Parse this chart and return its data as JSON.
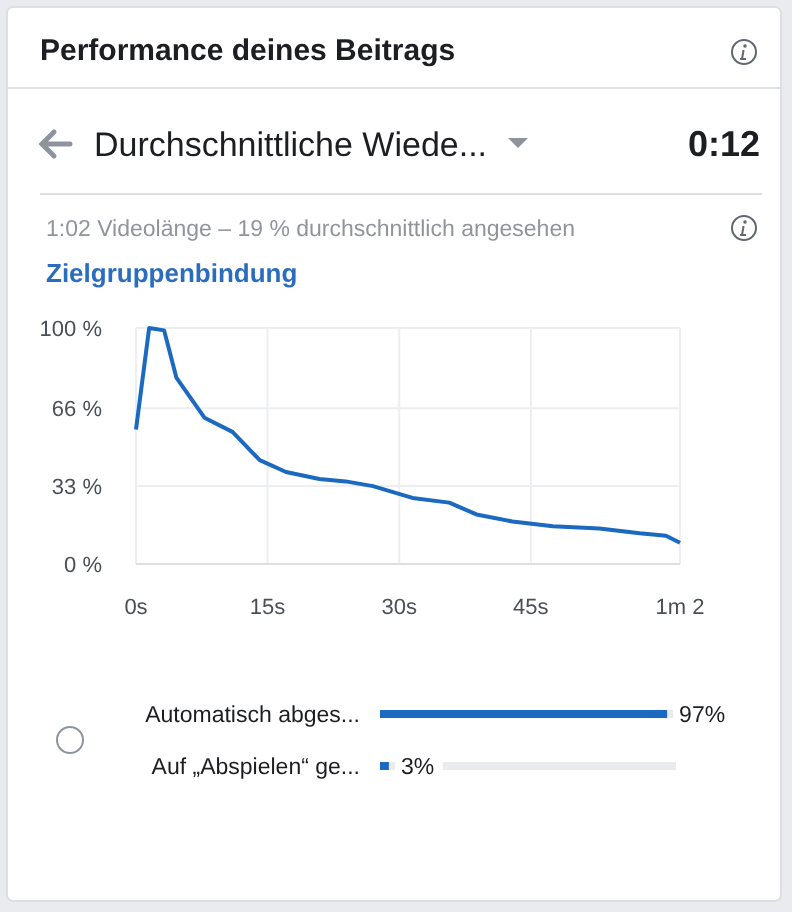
{
  "chart_data": [
    {
      "type": "line",
      "title": "Zielgruppenbindung",
      "subtitle": "1:02 Videolänge – 19 % durchschnittlich angesehen",
      "annotations": [
        "Performance deines Beitrags",
        "Durchschnittliche Wiede...",
        "0:12"
      ],
      "x": [
        0,
        1.5,
        3.2,
        4.6,
        6.1,
        7.8,
        11,
        14.1,
        17.1,
        20.9,
        23.9,
        27,
        31.5,
        35.7,
        38.8,
        42.9,
        47.5,
        52.8,
        57.4,
        60.4,
        62
      ],
      "series": [
        {
          "color": "#1b6ac0",
          "values": [
            57,
            100,
            99,
            79,
            71,
            62,
            56,
            44,
            39,
            36,
            35,
            33,
            28,
            26,
            21,
            18,
            16,
            15,
            13,
            12,
            9
          ]
        }
      ],
      "xlim": [
        0,
        62
      ],
      "xticks": [
        {
          "value": 0,
          "label": "0s"
        },
        {
          "value": 15,
          "label": "15s"
        },
        {
          "value": 30,
          "label": "30s"
        },
        {
          "value": 45,
          "label": "45s"
        },
        {
          "value": 62,
          "label": "1m 2"
        }
      ],
      "ylim": [
        0,
        100
      ],
      "yticks": [
        {
          "value": 0,
          "label": "0 %"
        },
        {
          "value": 33,
          "label": "33 %"
        },
        {
          "value": 66,
          "label": "66 %"
        },
        {
          "value": 100,
          "label": "100 %"
        }
      ],
      "grid": true,
      "line_style": "solid",
      "marker": "none"
    },
    {
      "type": "bar",
      "orientation": "horizontal",
      "categories": [
        "Automatisch abges...",
        "Auf „Abspielen“ ge..."
      ],
      "values": [
        97,
        3
      ],
      "value_labels": [
        "97%",
        "3%"
      ],
      "color": "#1b6ac0",
      "xlim": [
        0,
        100
      ],
      "tick_labels": "y"
    }
  ]
}
